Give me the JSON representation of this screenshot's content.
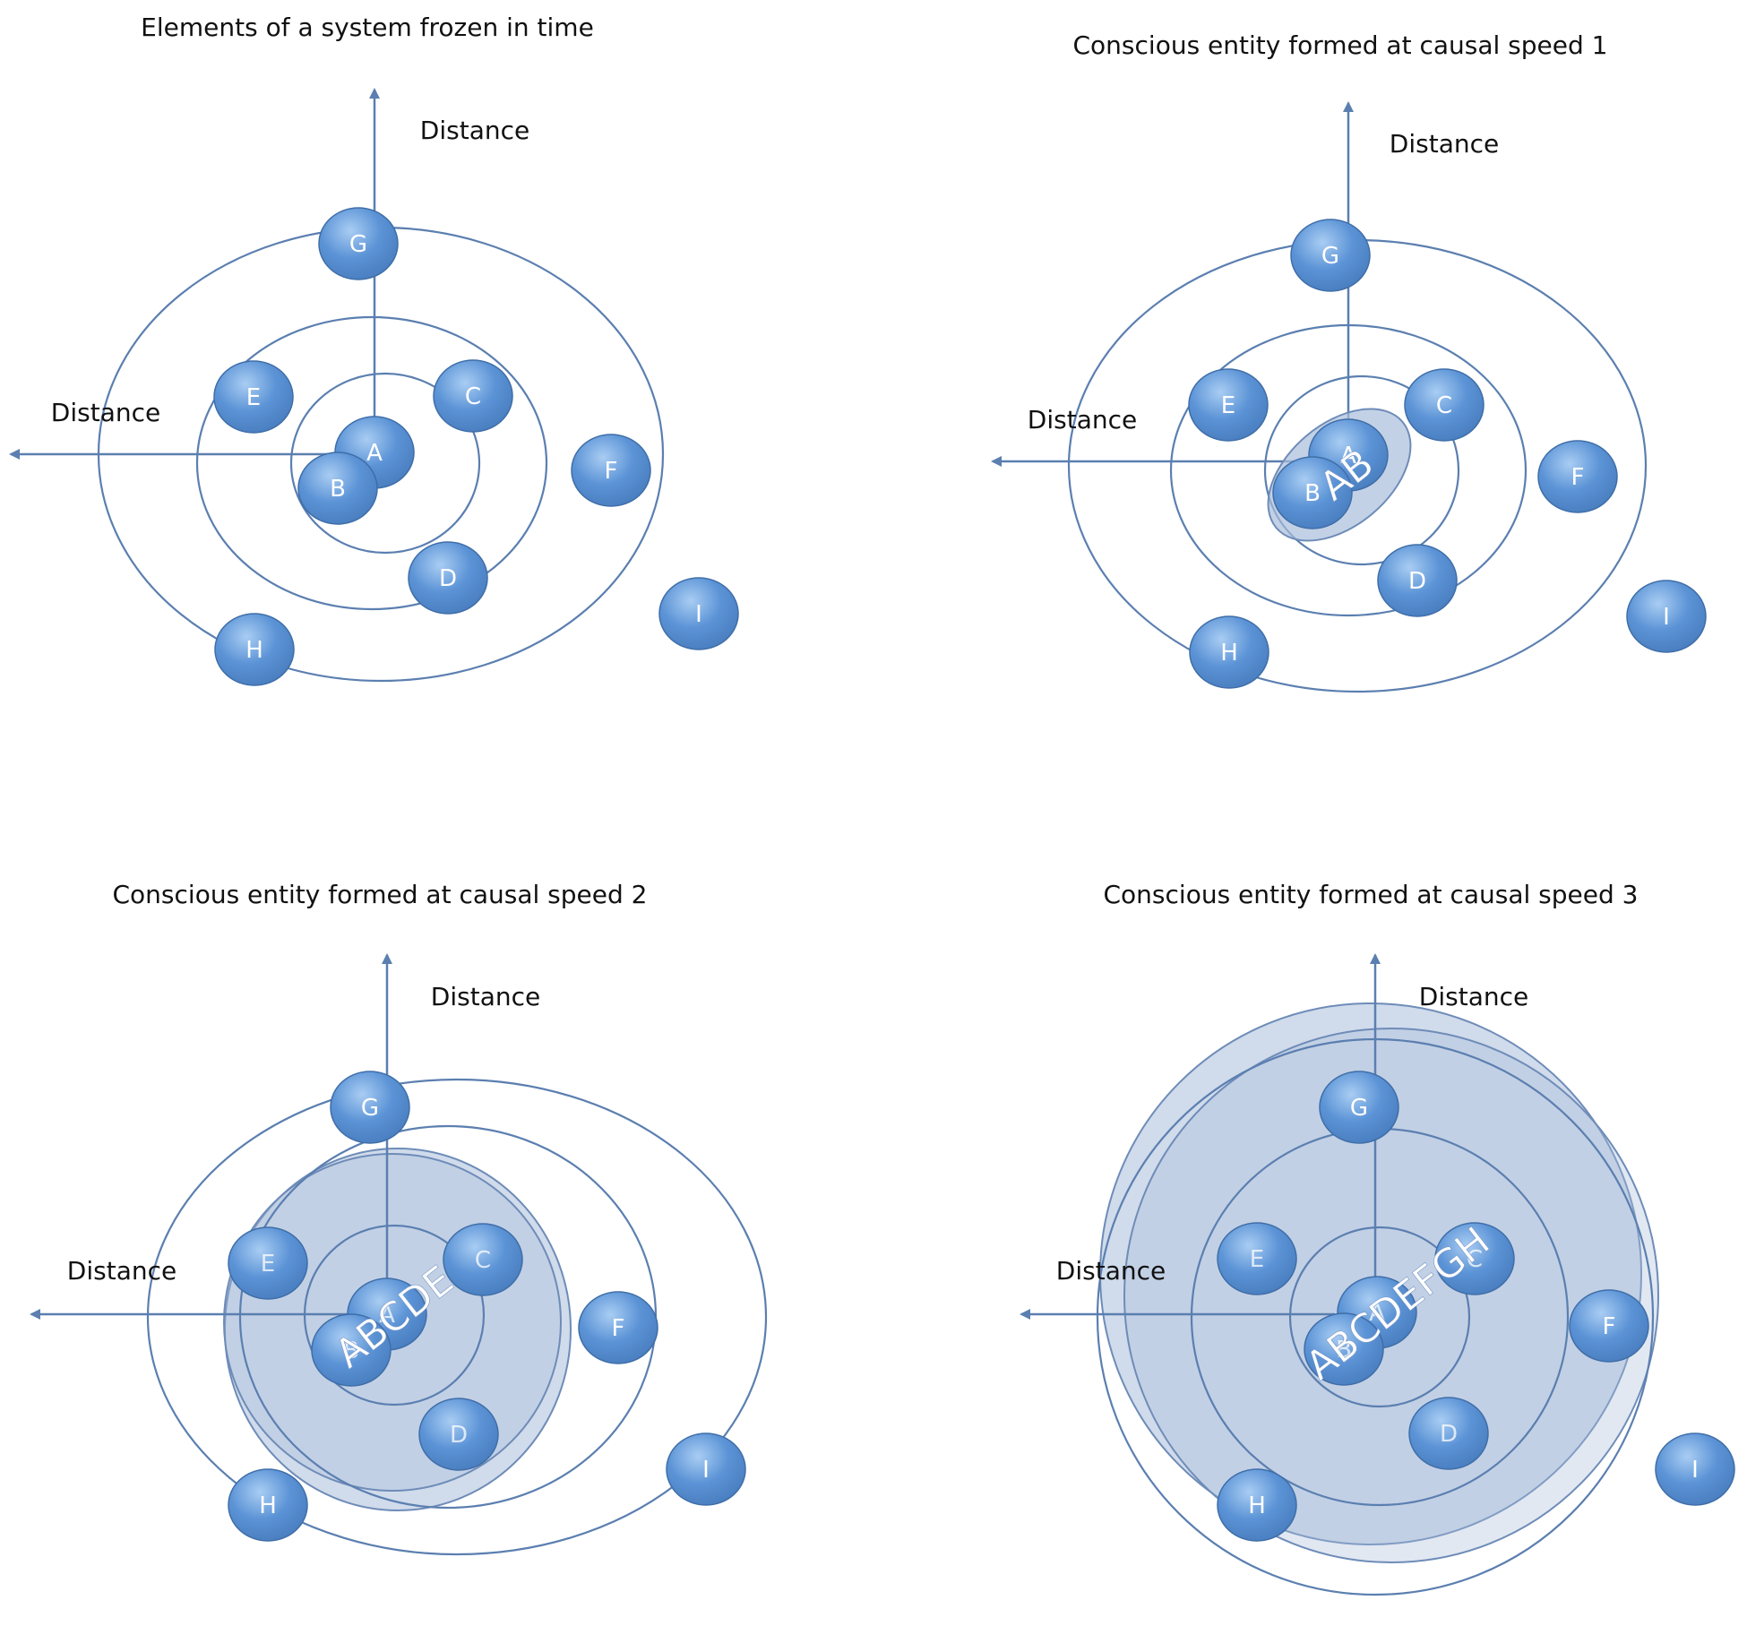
{
  "colors": {
    "ring": "#5b7fb0",
    "axis": "#5b7fb0",
    "node_fill": "#5b93d6",
    "node_stroke": "#3f6ea8",
    "entity_fill": "#a9bedb",
    "entity_stroke": "#6e8cb8",
    "text": "#111111",
    "node_text": "#ffffff"
  },
  "axis_labels": {
    "vertical": "Distance",
    "horizontal": "Distance"
  },
  "panels": [
    {
      "title": "Elements of a system frozen in time",
      "entity_label": "",
      "nodes": [
        "A",
        "B",
        "C",
        "D",
        "E",
        "F",
        "G",
        "H",
        "I"
      ]
    },
    {
      "title": "Conscious entity formed at causal speed 1",
      "entity_label": "AB",
      "nodes": [
        "A",
        "B",
        "C",
        "D",
        "E",
        "F",
        "G",
        "H",
        "I"
      ]
    },
    {
      "title": "Conscious entity formed at causal speed 2",
      "entity_label": "ABCDE",
      "nodes": [
        "A",
        "B",
        "C",
        "D",
        "E",
        "F",
        "G",
        "H",
        "I"
      ]
    },
    {
      "title": "Conscious entity formed at causal speed 3",
      "entity_label": "ABCDEFGH",
      "nodes": [
        "A",
        "B",
        "C",
        "D",
        "E",
        "F",
        "G",
        "H",
        "I"
      ]
    }
  ]
}
